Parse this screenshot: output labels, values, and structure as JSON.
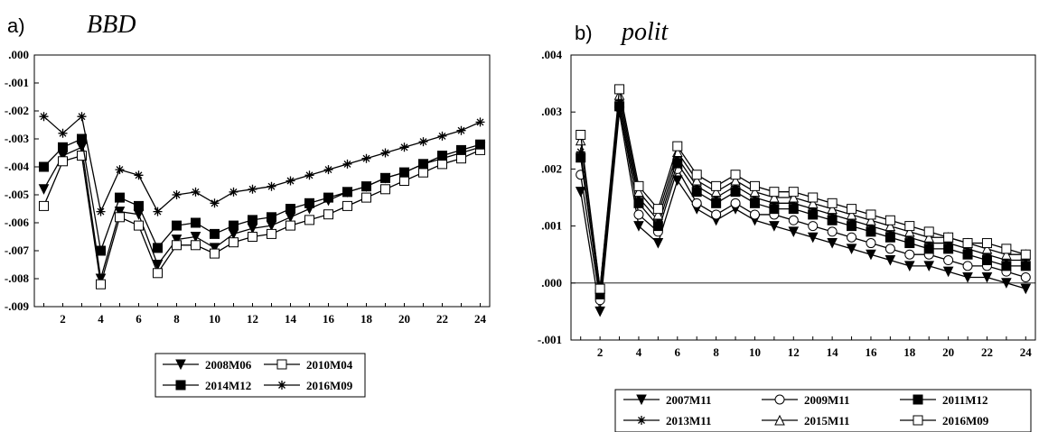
{
  "chart_data": [
    {
      "type": "line",
      "panel_label": "a)",
      "title": "BBD",
      "x": [
        1,
        2,
        3,
        4,
        5,
        6,
        7,
        8,
        9,
        10,
        11,
        12,
        13,
        14,
        15,
        16,
        17,
        18,
        19,
        20,
        21,
        22,
        23,
        24
      ],
      "x_tick_labels": [
        "2",
        "4",
        "6",
        "8",
        "10",
        "12",
        "14",
        "16",
        "18",
        "20",
        "22",
        "24"
      ],
      "ylim": [
        -0.009,
        0.0
      ],
      "y_tick_labels": [
        ".000",
        "-.001",
        "-.002",
        "-.003",
        "-.004",
        "-.005",
        "-.006",
        "-.007",
        "-.008",
        "-.009"
      ],
      "series": [
        {
          "name": "2008M06",
          "marker": "tri-down",
          "values": [
            -0.0048,
            -0.0036,
            -0.0033,
            -0.008,
            -0.0056,
            -0.0057,
            -0.0075,
            -0.0066,
            -0.0065,
            -0.0069,
            -0.0064,
            -0.0062,
            -0.0061,
            -0.0058,
            -0.0055,
            -0.0052,
            -0.0049,
            -0.0047,
            -0.0044,
            -0.0042,
            -0.0039,
            -0.0037,
            -0.0035,
            -0.0033
          ]
        },
        {
          "name": "2010M04",
          "marker": "square-open",
          "values": [
            -0.0054,
            -0.0038,
            -0.0036,
            -0.0082,
            -0.0058,
            -0.0061,
            -0.0078,
            -0.0068,
            -0.0068,
            -0.0071,
            -0.0067,
            -0.0065,
            -0.0064,
            -0.0061,
            -0.0059,
            -0.0057,
            -0.0054,
            -0.0051,
            -0.0048,
            -0.0045,
            -0.0042,
            -0.0039,
            -0.0037,
            -0.0034
          ]
        },
        {
          "name": "2014M12",
          "marker": "square-filled",
          "values": [
            -0.004,
            -0.0033,
            -0.003,
            -0.007,
            -0.0051,
            -0.0054,
            -0.0069,
            -0.0061,
            -0.006,
            -0.0064,
            -0.0061,
            -0.0059,
            -0.0058,
            -0.0055,
            -0.0053,
            -0.0051,
            -0.0049,
            -0.0047,
            -0.0044,
            -0.0042,
            -0.0039,
            -0.0036,
            -0.0034,
            -0.0032
          ]
        },
        {
          "name": "2016M09",
          "marker": "asterisk",
          "values": [
            -0.0022,
            -0.0028,
            -0.0022,
            -0.0056,
            -0.0041,
            -0.0043,
            -0.0056,
            -0.005,
            -0.0049,
            -0.0053,
            -0.0049,
            -0.0048,
            -0.0047,
            -0.0045,
            -0.0043,
            -0.0041,
            -0.0039,
            -0.0037,
            -0.0035,
            -0.0033,
            -0.0031,
            -0.0029,
            -0.0027,
            -0.0024
          ]
        }
      ],
      "legend": {
        "position": "bottom",
        "columns": 2
      },
      "grid": false
    },
    {
      "type": "line",
      "panel_label": "b)",
      "title": "polit",
      "x": [
        1,
        2,
        3,
        4,
        5,
        6,
        7,
        8,
        9,
        10,
        11,
        12,
        13,
        14,
        15,
        16,
        17,
        18,
        19,
        20,
        21,
        22,
        23,
        24
      ],
      "x_tick_labels": [
        "2",
        "4",
        "6",
        "8",
        "10",
        "12",
        "14",
        "16",
        "18",
        "20",
        "22",
        "24"
      ],
      "ylim": [
        -0.001,
        0.004
      ],
      "y_tick_labels": [
        ".004",
        ".003",
        ".002",
        ".001",
        ".000",
        "-.001"
      ],
      "zero_line": true,
      "series": [
        {
          "name": "2007M11",
          "marker": "tri-down",
          "values": [
            0.0016,
            -0.0005,
            0.003,
            0.001,
            0.0007,
            0.0018,
            0.0013,
            0.0011,
            0.0013,
            0.0011,
            0.001,
            0.0009,
            0.0008,
            0.0007,
            0.0006,
            0.0005,
            0.0004,
            0.0003,
            0.0003,
            0.0002,
            0.0001,
            0.0001,
            0.0,
            -0.0001
          ]
        },
        {
          "name": "2009M11",
          "marker": "circle-open",
          "values": [
            0.0019,
            -0.0003,
            0.0031,
            0.0012,
            0.0009,
            0.002,
            0.0014,
            0.0012,
            0.0014,
            0.0012,
            0.0012,
            0.0011,
            0.001,
            0.0009,
            0.0008,
            0.0007,
            0.0006,
            0.0005,
            0.0005,
            0.0004,
            0.0003,
            0.0003,
            0.0002,
            0.0001
          ]
        },
        {
          "name": "2011M12",
          "marker": "square-filled",
          "values": [
            0.0022,
            -0.0002,
            0.0031,
            0.0014,
            0.001,
            0.0021,
            0.0016,
            0.0014,
            0.0016,
            0.0014,
            0.0013,
            0.0013,
            0.0012,
            0.0011,
            0.001,
            0.0009,
            0.0008,
            0.0007,
            0.0006,
            0.0006,
            0.0005,
            0.0004,
            0.0003,
            0.0003
          ]
        },
        {
          "name": "2013M11",
          "marker": "asterisk",
          "values": [
            0.0023,
            -0.0002,
            0.0032,
            0.0015,
            0.0011,
            0.0022,
            0.0017,
            0.0015,
            0.0017,
            0.0015,
            0.0014,
            0.0014,
            0.0013,
            0.0012,
            0.0011,
            0.001,
            0.0009,
            0.0008,
            0.0007,
            0.0007,
            0.0006,
            0.0005,
            0.0004,
            0.0004
          ]
        },
        {
          "name": "2015M11",
          "marker": "tri-up-open",
          "values": [
            0.0025,
            -0.0001,
            0.0033,
            0.0016,
            0.0012,
            0.0023,
            0.0018,
            0.0016,
            0.0018,
            0.0016,
            0.0015,
            0.0015,
            0.0014,
            0.0013,
            0.0012,
            0.0011,
            0.001,
            0.0009,
            0.0008,
            0.0008,
            0.0007,
            0.0006,
            0.0005,
            0.0005
          ]
        },
        {
          "name": "2016M09",
          "marker": "square-open",
          "values": [
            0.0026,
            -0.0001,
            0.0034,
            0.0017,
            0.0013,
            0.0024,
            0.0019,
            0.0017,
            0.0019,
            0.0017,
            0.0016,
            0.0016,
            0.0015,
            0.0014,
            0.0013,
            0.0012,
            0.0011,
            0.001,
            0.0009,
            0.0008,
            0.0007,
            0.0007,
            0.0006,
            0.0005
          ]
        }
      ],
      "legend": {
        "position": "bottom",
        "columns": 3
      },
      "grid": false
    }
  ]
}
